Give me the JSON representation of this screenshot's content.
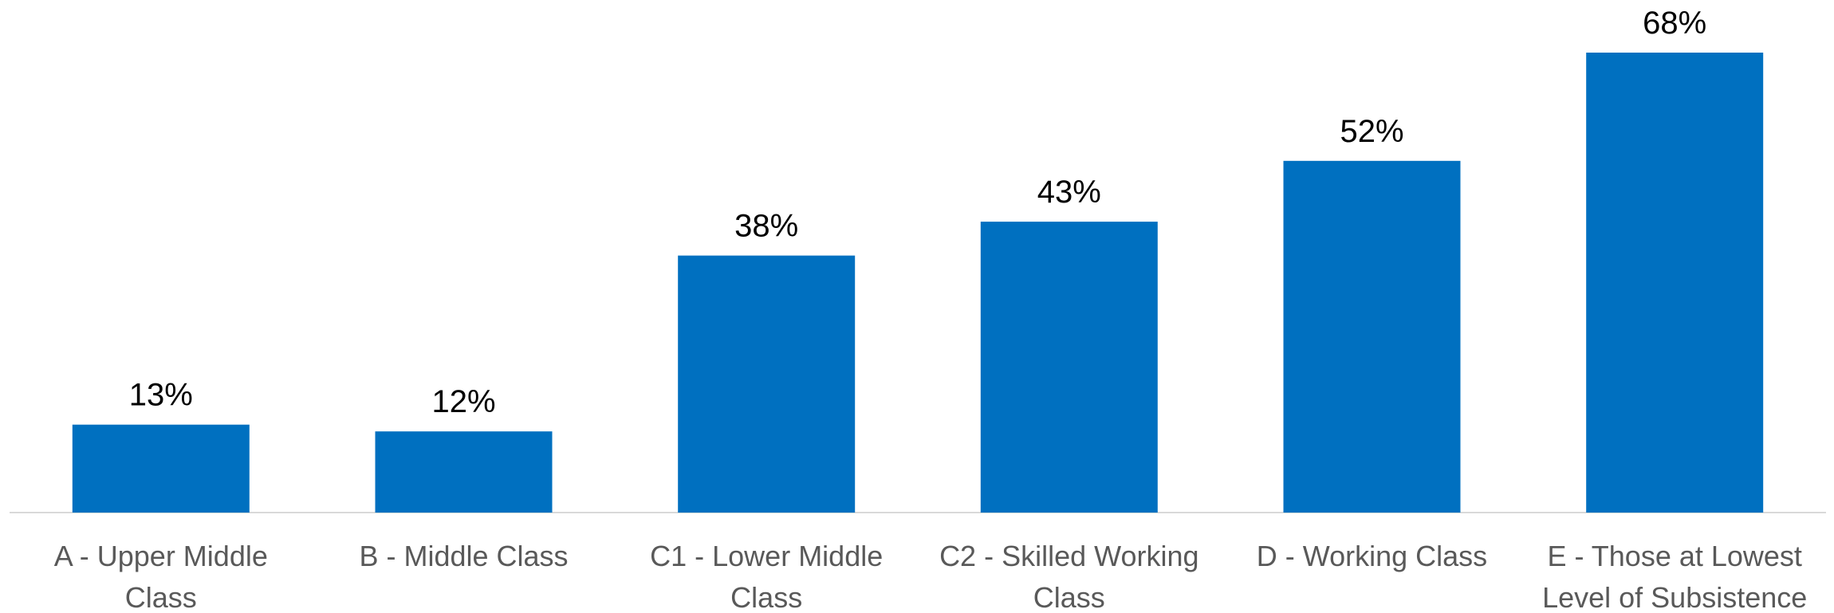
{
  "chart_data": {
    "type": "bar",
    "title": "",
    "xlabel": "",
    "ylabel": "",
    "ylim": [
      0,
      70
    ],
    "grid": false,
    "legend": "none",
    "categories": [
      [
        "A - Upper Middle",
        "Class"
      ],
      [
        "B - Middle Class"
      ],
      [
        "C1 - Lower Middle",
        "Class"
      ],
      [
        "C2 - Skilled Working",
        "Class"
      ],
      [
        "D - Working Class"
      ],
      [
        "E - Those at Lowest",
        "Level of Subsistence"
      ]
    ],
    "values": [
      13,
      12,
      38,
      43,
      52,
      68
    ],
    "value_labels": [
      "13%",
      "12%",
      "38%",
      "43%",
      "52%",
      "68%"
    ],
    "bar_color": "#0070C0",
    "axis_color": "#D9D9D9"
  }
}
